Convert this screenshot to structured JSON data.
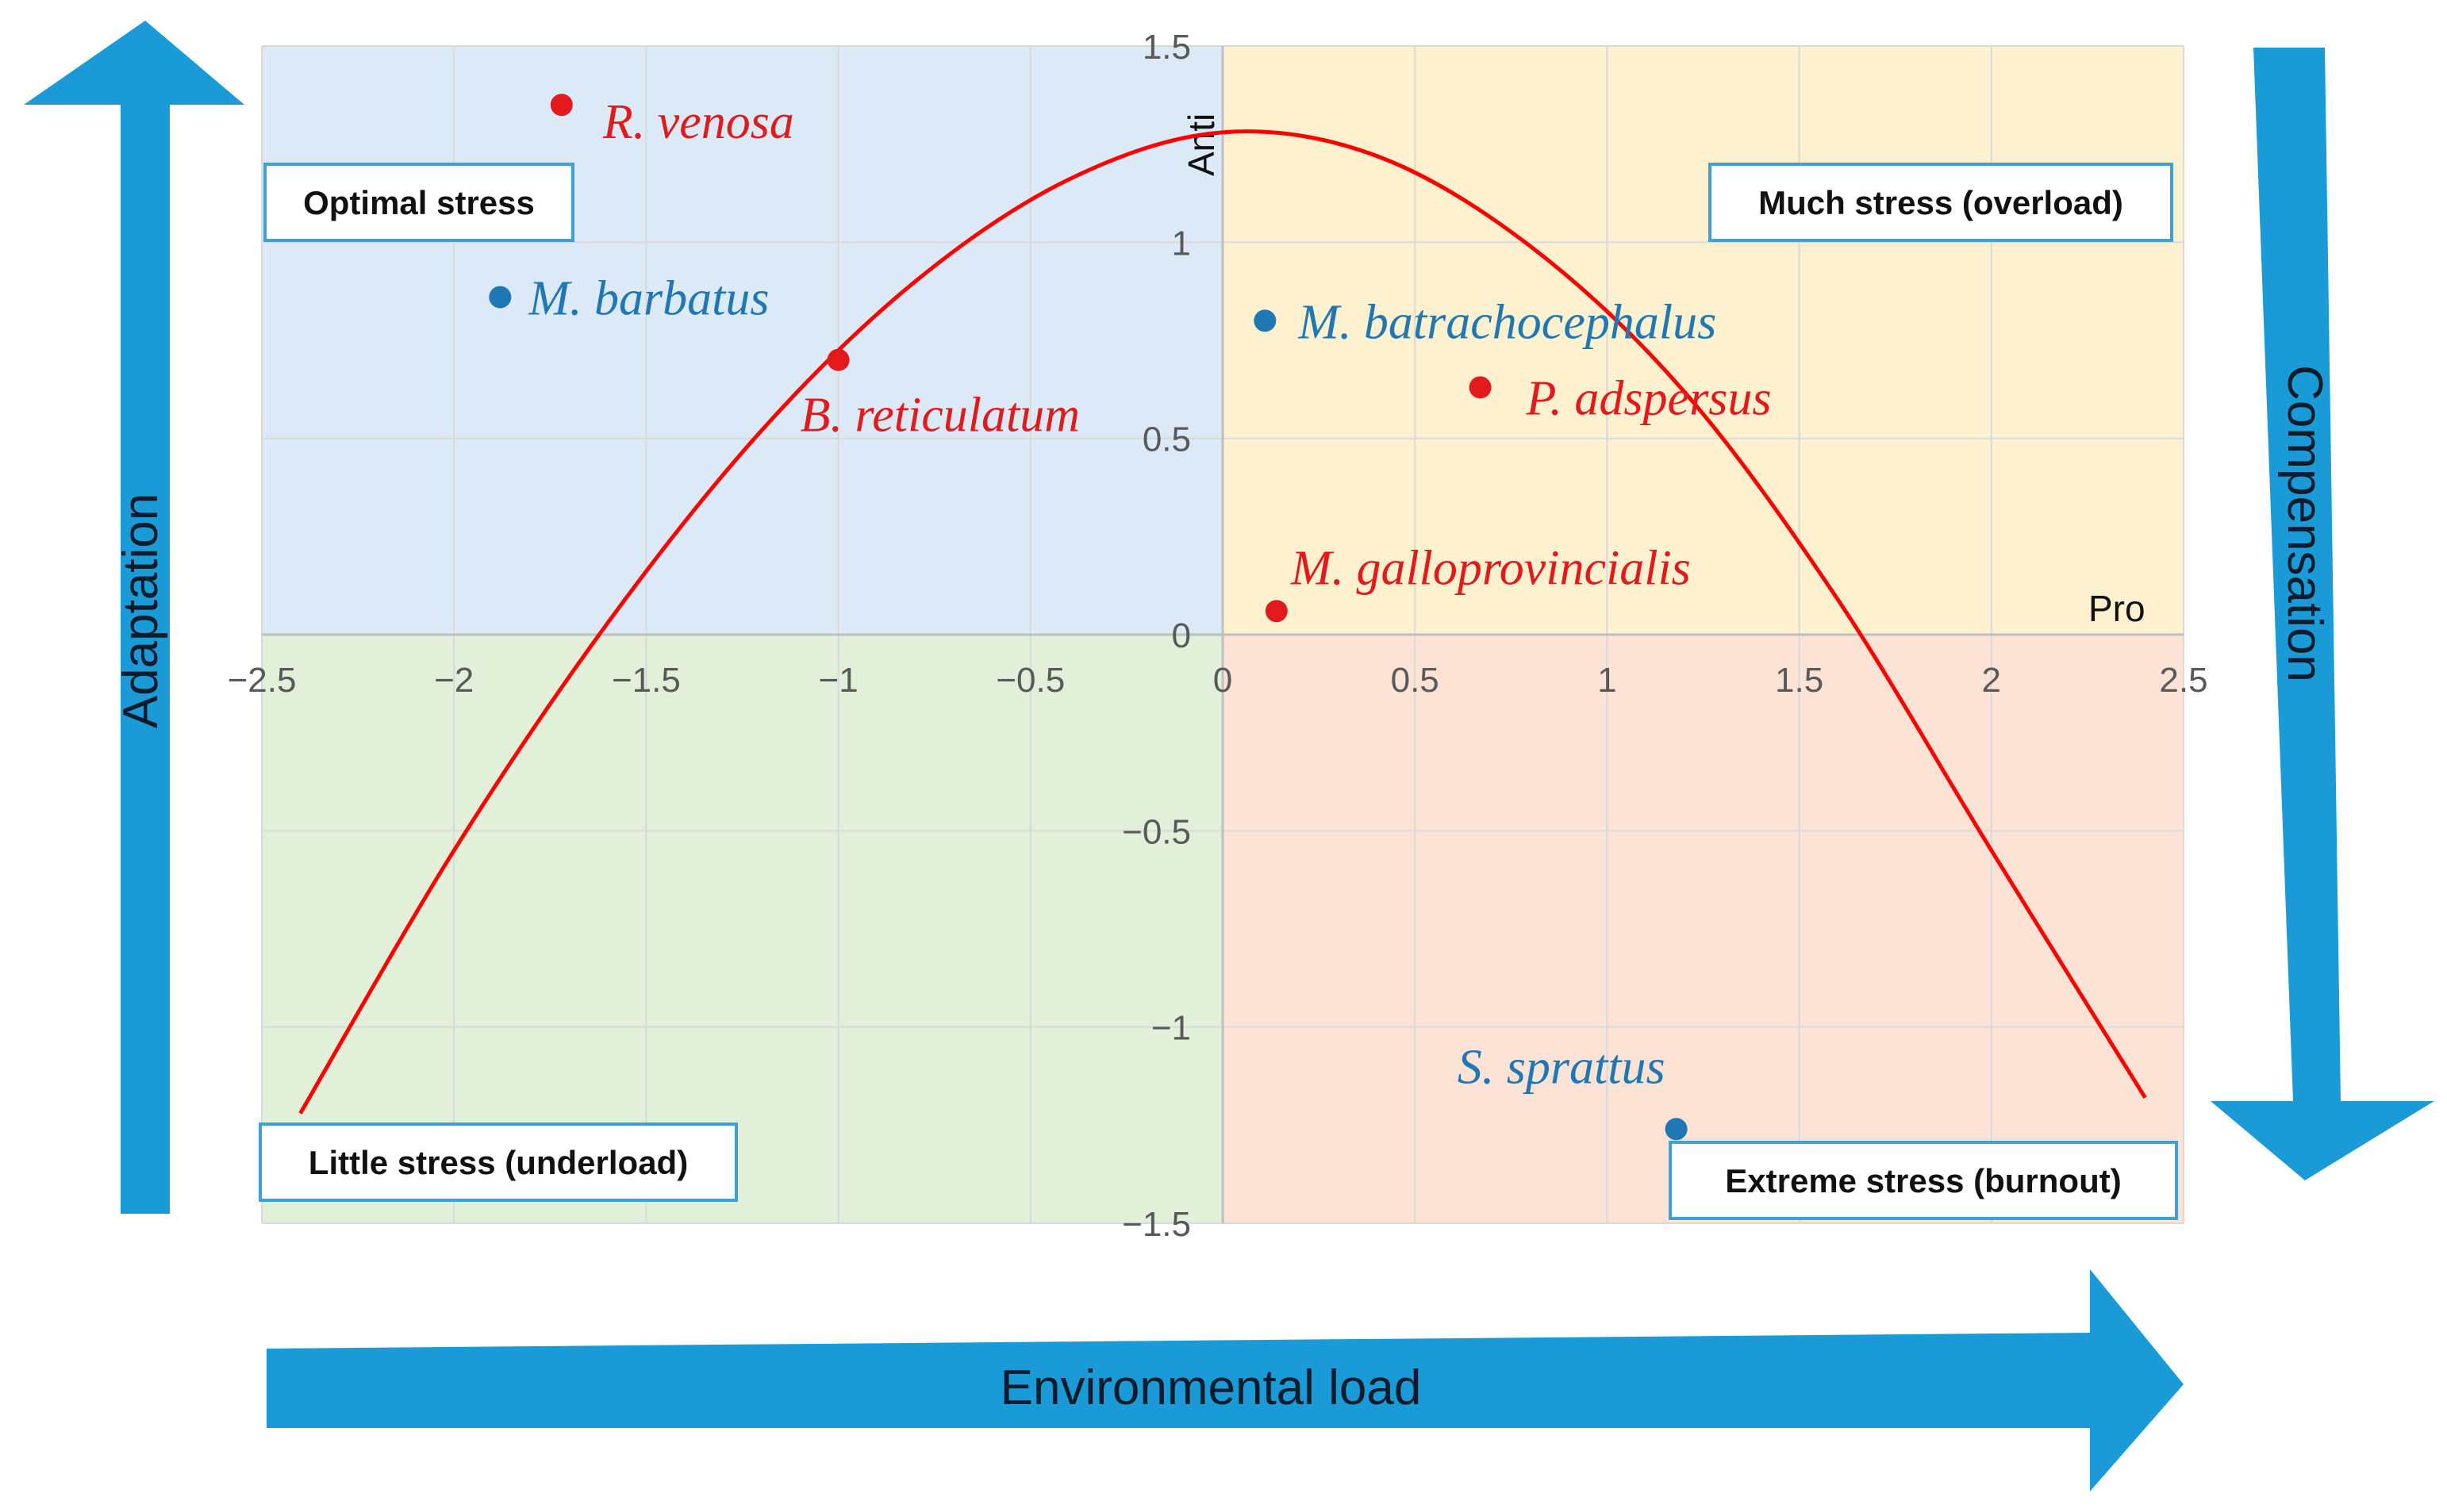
{
  "chart_data": {
    "type": "scatter",
    "xlim": [
      -2.5,
      2.5
    ],
    "ylim": [
      -1.5,
      1.5
    ],
    "x_ticks": [
      -2.5,
      -2,
      -1.5,
      -1,
      -0.5,
      0,
      0.5,
      1,
      1.5,
      2,
      2.5
    ],
    "x_tick_labels": [
      "−2.5",
      "−2",
      "−1.5",
      "−1",
      "−0.5",
      "0",
      "0.5",
      "1",
      "1.5",
      "2",
      "2.5"
    ],
    "y_ticks": [
      1.5,
      1,
      0.5,
      0,
      -0.5,
      -1,
      -1.5
    ],
    "y_tick_labels": [
      "1.5",
      "1",
      "0.5",
      "0",
      "−0.5",
      "−1",
      "−1.5"
    ],
    "xlabel": "Pro",
    "ylabel": "Anti",
    "grid": true,
    "quadrants": [
      {
        "name": "top-left",
        "label": "Optimal stress",
        "color": "#dce9f6"
      },
      {
        "name": "top-right",
        "label": "Much stress (overload)",
        "color": "#fdf1cf"
      },
      {
        "name": "bottom-left",
        "label": "Little stress (underload)",
        "color": "#e2efd9"
      },
      {
        "name": "bottom-right",
        "label": "Extreme stress (burnout)",
        "color": "#fce3d6"
      }
    ],
    "curve": {
      "description": "inverted parabola",
      "color": "#ff0000",
      "points": [
        {
          "x": -2.4,
          "y": -1.22
        },
        {
          "x": -2.0,
          "y": -0.55
        },
        {
          "x": -1.6,
          "y": 0.03
        },
        {
          "x": -1.2,
          "y": 0.52
        },
        {
          "x": -0.8,
          "y": 0.9
        },
        {
          "x": -0.4,
          "y": 1.16
        },
        {
          "x": 0.0,
          "y": 1.28
        },
        {
          "x": 0.4,
          "y": 1.22
        },
        {
          "x": 0.8,
          "y": 0.99
        },
        {
          "x": 1.2,
          "y": 0.62
        },
        {
          "x": 1.6,
          "y": 0.09
        },
        {
          "x": 2.0,
          "y": -0.55
        },
        {
          "x": 2.4,
          "y": -1.18
        }
      ]
    },
    "points": [
      {
        "label": "R. venosa",
        "x": -1.72,
        "y": 1.35,
        "color": "#e31a1c"
      },
      {
        "label": "M. barbatus",
        "x": -1.88,
        "y": 0.86,
        "color": "#1f77b4"
      },
      {
        "label": "B. reticulatum",
        "x": -1.0,
        "y": 0.7,
        "color": "#e31a1c"
      },
      {
        "label": "M. batrachocephalus",
        "x": 0.11,
        "y": 0.8,
        "color": "#1f77b4"
      },
      {
        "label": "P. adspersus",
        "x": 0.67,
        "y": 0.63,
        "color": "#e31a1c"
      },
      {
        "label": "M. galloprovincialis",
        "x": 0.14,
        "y": 0.06,
        "color": "#e31a1c"
      },
      {
        "label": "S. sprattus",
        "x": 1.18,
        "y": -1.26,
        "color": "#1f77b4"
      }
    ]
  },
  "arrows": {
    "left": "Adaptation",
    "right": "Compensation",
    "bottom": "Environmental load",
    "color": "#1a9ad6"
  }
}
